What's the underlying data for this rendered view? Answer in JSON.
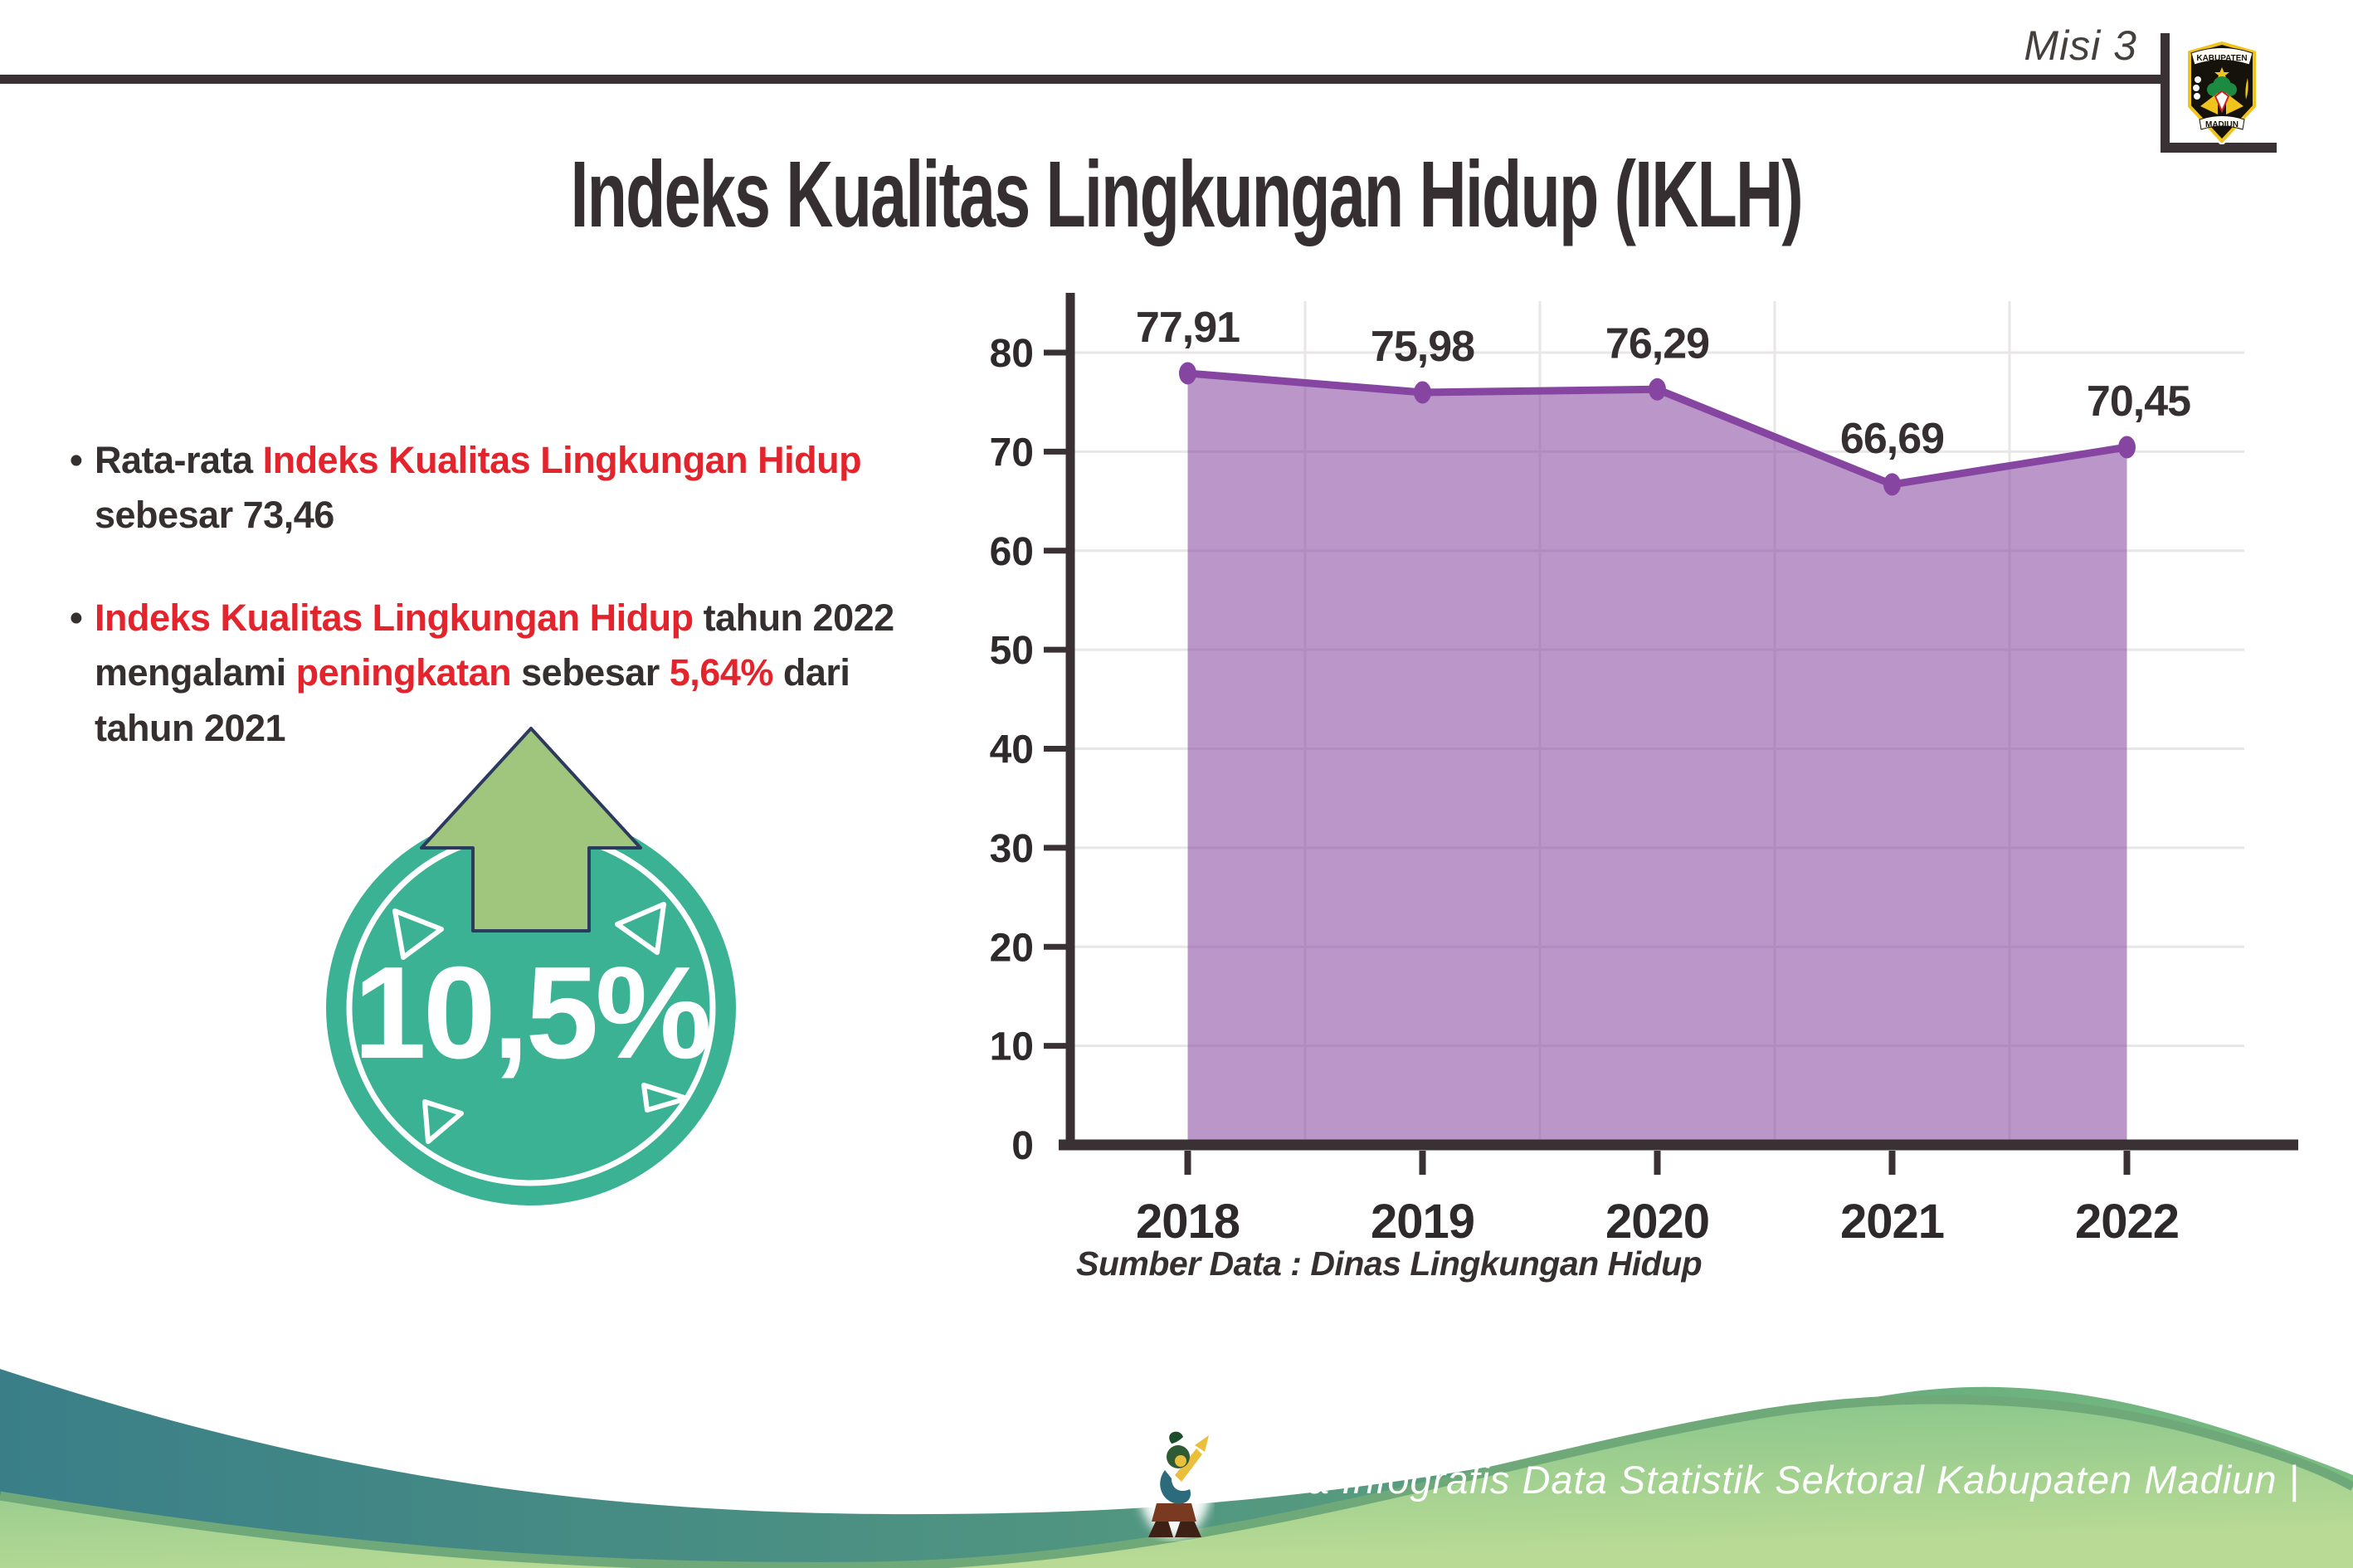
{
  "header": {
    "misi_label": "Misi 3",
    "logo": {
      "top_text": "KABUPATEN",
      "bottom_text": "MADIUN"
    }
  },
  "title": "Indeks Kualitas Lingkungan Hidup (IKLH)",
  "bullets": [
    {
      "segments": [
        {
          "text": "Rata-rata ",
          "color": "dark"
        },
        {
          "text": "Indeks Kualitas Lingkungan Hidup",
          "color": "red"
        },
        {
          "text": " sebesar 73,46",
          "color": "dark"
        }
      ]
    },
    {
      "segments": [
        {
          "text": "Indeks Kualitas Lingkungan Hidup",
          "color": "red"
        },
        {
          "text": " tahun 2022 mengalami ",
          "color": "dark"
        },
        {
          "text": "peningkatan",
          "color": "red"
        },
        {
          "text": " sebesar ",
          "color": "dark"
        },
        {
          "text": "5,64%",
          "color": "red"
        },
        {
          "text": " dari tahun 2021",
          "color": "dark"
        }
      ]
    }
  ],
  "badge": {
    "percent": "10,5%",
    "direction": "up"
  },
  "chart_data": {
    "type": "area",
    "categories": [
      "2018",
      "2019",
      "2020",
      "2021",
      "2022"
    ],
    "series": [
      {
        "name": "IKLH",
        "values": [
          77.91,
          75.98,
          76.29,
          66.69,
          70.45
        ]
      }
    ],
    "value_labels": [
      "77,91",
      "75,98",
      "76,29",
      "66,69",
      "70,45"
    ],
    "title": "",
    "xlabel": "",
    "ylabel": "",
    "ylim": [
      0,
      85
    ],
    "yticks": [
      0,
      10,
      20,
      30,
      40,
      50,
      60,
      70,
      80
    ],
    "grid": true,
    "legend": false,
    "line_color": "#8745a2",
    "fill_color": "#8a4aa2",
    "fill_opacity": 0.58,
    "axis_color": "#3a3134",
    "grid_color": "#e8e6e7",
    "label_color": "#362f31"
  },
  "source_note": "Sumber Data : Dinas Lingkungan Hidup",
  "footer": {
    "credit": "Media Infografis Data Statistik Sektoral Kabupaten Madiun |"
  },
  "colors": {
    "accent_red": "#e3242c",
    "text_dark": "#35302f",
    "badge_teal": "#3bb293",
    "arrow_green": "#a0c67e",
    "arrow_outline": "#2c3a5e",
    "wave_teal": "#3a7f88",
    "wave_green": "#79bd80",
    "dome_green_light": "#b8da95",
    "dome_rim": "#6fa97a",
    "logo_gold": "#f0c41d"
  }
}
